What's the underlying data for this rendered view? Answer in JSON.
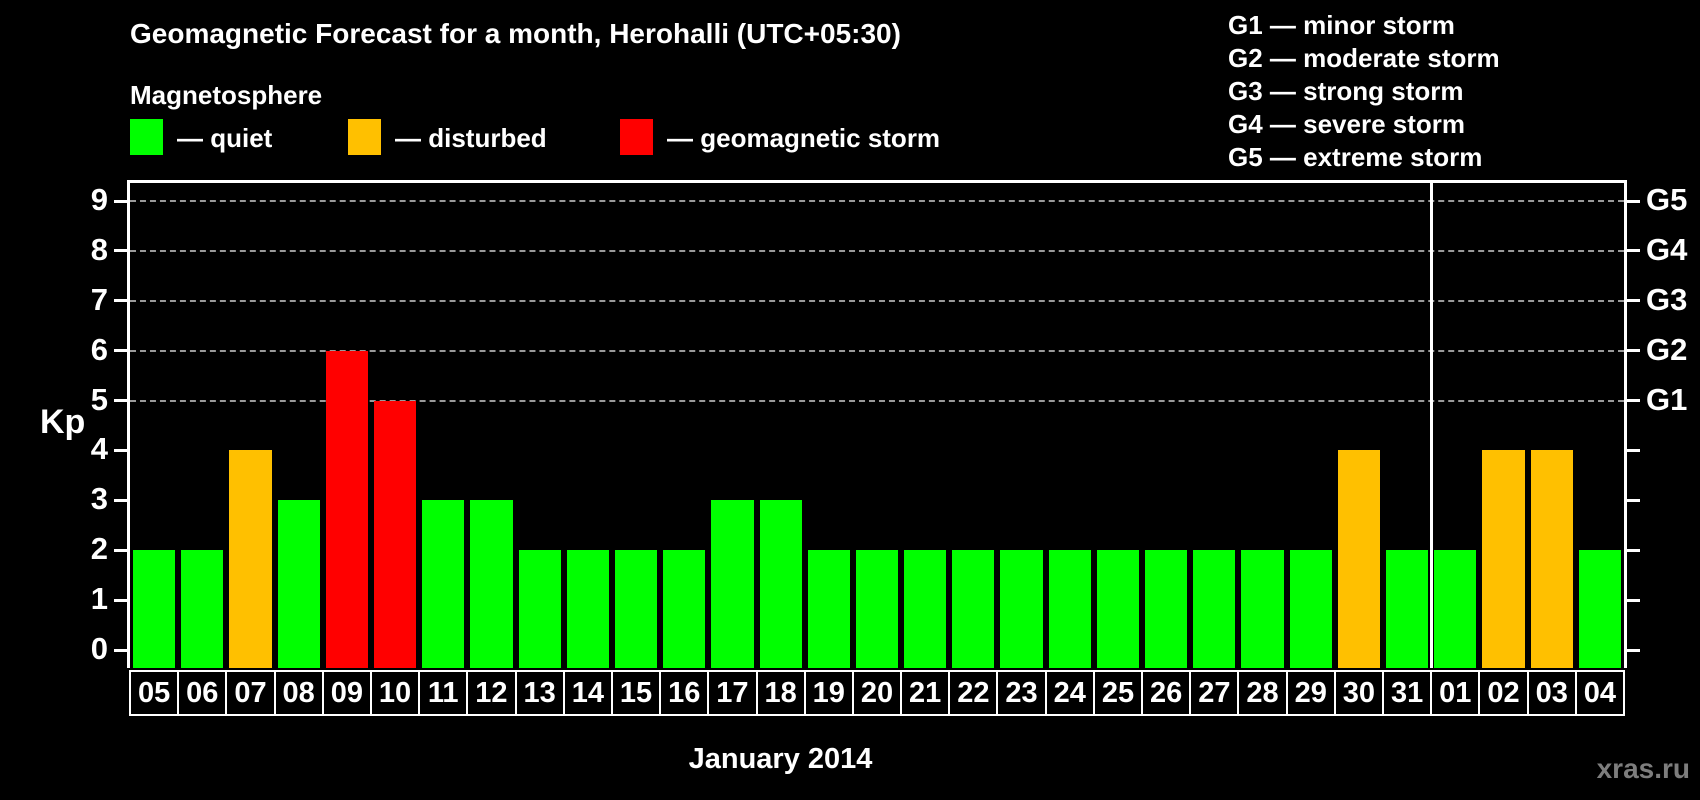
{
  "title": "Geomagnetic Forecast for a month, Herohalli (UTC+05:30)",
  "subtitle": "Magnetosphere",
  "legend": {
    "items": [
      {
        "name": "quiet",
        "label": "— quiet",
        "color": "#00ff00"
      },
      {
        "name": "disturbed",
        "label": "— disturbed",
        "color": "#ffc000"
      },
      {
        "name": "storm",
        "label": "— geomagnetic storm",
        "color": "#ff0000"
      }
    ]
  },
  "storm_scale_legend": [
    "G1 — minor storm",
    "G2 — moderate storm",
    "G3 — strong storm",
    "G4 — severe storm",
    "G5 — extreme storm"
  ],
  "watermark": "xras.ru",
  "chart_data": {
    "type": "bar",
    "title": "Geomagnetic Forecast for a month, Herohalli (UTC+05:30)",
    "xlabel": "January 2014",
    "ylabel": "Kp",
    "ylim": [
      0,
      9
    ],
    "yticks": [
      0,
      1,
      2,
      3,
      4,
      5,
      6,
      7,
      8,
      9
    ],
    "gridline_levels": [
      5,
      6,
      7,
      8,
      9
    ],
    "grid": "dashed horizontal at Kp 5-9",
    "legend_position": "top",
    "right_axis": [
      {
        "kp": 5,
        "label": "G1"
      },
      {
        "kp": 6,
        "label": "G2"
      },
      {
        "kp": 7,
        "label": "G3"
      },
      {
        "kp": 8,
        "label": "G4"
      },
      {
        "kp": 9,
        "label": "G5"
      }
    ],
    "categories": [
      "05",
      "06",
      "07",
      "08",
      "09",
      "10",
      "11",
      "12",
      "13",
      "14",
      "15",
      "16",
      "17",
      "18",
      "19",
      "20",
      "21",
      "22",
      "23",
      "24",
      "25",
      "26",
      "27",
      "28",
      "29",
      "30",
      "31",
      "01",
      "02",
      "03",
      "04"
    ],
    "values": [
      2,
      2,
      4,
      3,
      6,
      5,
      3,
      3,
      2,
      2,
      2,
      2,
      3,
      3,
      2,
      2,
      2,
      2,
      2,
      2,
      2,
      2,
      2,
      2,
      2,
      4,
      2,
      2,
      4,
      4,
      2
    ],
    "statuses": [
      "quiet",
      "quiet",
      "disturbed",
      "quiet",
      "storm",
      "storm",
      "quiet",
      "quiet",
      "quiet",
      "quiet",
      "quiet",
      "quiet",
      "quiet",
      "quiet",
      "quiet",
      "quiet",
      "quiet",
      "quiet",
      "quiet",
      "quiet",
      "quiet",
      "quiet",
      "quiet",
      "quiet",
      "quiet",
      "disturbed",
      "quiet",
      "quiet",
      "disturbed",
      "disturbed",
      "quiet"
    ],
    "status_colors": {
      "quiet": "#00ff00",
      "disturbed": "#ffc000",
      "storm": "#ff0000"
    },
    "month_divider_after_index": 26,
    "axis_color": "#ffffff",
    "gridline_color": "#9a9a9a",
    "background_color": "#000000"
  }
}
